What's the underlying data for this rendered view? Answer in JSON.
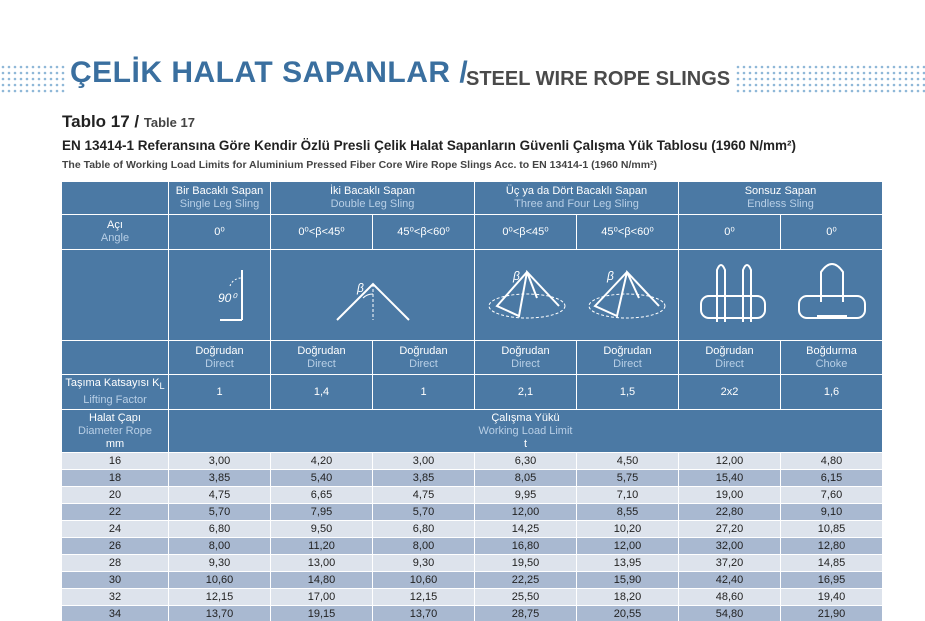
{
  "header": {
    "title_tr": "ÇELİK HALAT SAPANLAR /",
    "title_en": "STEEL WIRE ROPE SLINGS"
  },
  "table_label": {
    "tr": "Tablo 17 /",
    "en": "Table 17"
  },
  "heading": {
    "tr": "EN 13414-1 Referansına Göre Kendir Özlü Presli Çelik Halat Sapanların Güvenli Çalışma Yük Tablosu (1960 N/mm²)",
    "en": "The Table of Working Load Limits for Aluminium Pressed Fiber Core Wire Rope Slings Acc. to EN 13414-1 (1960 N/mm²)"
  },
  "icons": {
    "angle_label": "90⁰",
    "beta": "β"
  },
  "table": {
    "groups": [
      {
        "tr": "Bir Bacaklı Sapan",
        "en": "Single Leg Sling"
      },
      {
        "tr": "İki Bacaklı Sapan",
        "en": "Double Leg Sling"
      },
      {
        "tr": "Üç ya da Dört Bacaklı Sapan",
        "en": "Three and Four Leg Sling"
      },
      {
        "tr": "Sonsuz Sapan",
        "en": "Endless Sling"
      }
    ],
    "angle_label": {
      "tr": "Açı",
      "en": "Angle"
    },
    "angles": [
      "0⁰",
      "0⁰<β<45⁰",
      "45⁰<β<60⁰",
      "0⁰<β<45⁰",
      "45⁰<β<60⁰",
      "0⁰",
      "0⁰"
    ],
    "modes": [
      {
        "tr": "Doğrudan",
        "en": "Direct"
      },
      {
        "tr": "Doğrudan",
        "en": "Direct"
      },
      {
        "tr": "Doğrudan",
        "en": "Direct"
      },
      {
        "tr": "Doğrudan",
        "en": "Direct"
      },
      {
        "tr": "Doğrudan",
        "en": "Direct"
      },
      {
        "tr": "Doğrudan",
        "en": "Direct"
      },
      {
        "tr": "Boğdurma",
        "en": "Choke"
      }
    ],
    "lifting_factor": {
      "tr": "Taşıma Katsayısı K",
      "sub": "L",
      "en": "Lifting Factor",
      "values": [
        "1",
        "1,4",
        "1",
        "2,1",
        "1,5",
        "2x2",
        "1,6"
      ]
    },
    "diameter": {
      "tr": "Halat Çapı",
      "en": "Diameter Rope",
      "unit": "mm"
    },
    "load": {
      "tr": "Çalışma Yükü",
      "en": "Working Load Limit",
      "unit": "t"
    },
    "rows": [
      [
        "16",
        "3,00",
        "4,20",
        "3,00",
        "6,30",
        "4,50",
        "12,00",
        "4,80"
      ],
      [
        "18",
        "3,85",
        "5,40",
        "3,85",
        "8,05",
        "5,75",
        "15,40",
        "6,15"
      ],
      [
        "20",
        "4,75",
        "6,65",
        "4,75",
        "9,95",
        "7,10",
        "19,00",
        "7,60"
      ],
      [
        "22",
        "5,70",
        "7,95",
        "5,70",
        "12,00",
        "8,55",
        "22,80",
        "9,10"
      ],
      [
        "24",
        "6,80",
        "9,50",
        "6,80",
        "14,25",
        "10,20",
        "27,20",
        "10,85"
      ],
      [
        "26",
        "8,00",
        "11,20",
        "8,00",
        "16,80",
        "12,00",
        "32,00",
        "12,80"
      ],
      [
        "28",
        "9,30",
        "13,00",
        "9,30",
        "19,50",
        "13,95",
        "37,20",
        "14,85"
      ],
      [
        "30",
        "10,60",
        "14,80",
        "10,60",
        "22,25",
        "15,90",
        "42,40",
        "16,95"
      ],
      [
        "32",
        "12,15",
        "17,00",
        "12,15",
        "25,50",
        "18,20",
        "48,60",
        "19,40"
      ],
      [
        "34",
        "13,70",
        "19,15",
        "13,70",
        "28,75",
        "20,55",
        "54,80",
        "21,90"
      ]
    ]
  }
}
